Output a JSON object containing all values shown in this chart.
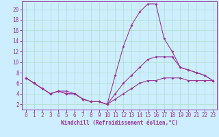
{
  "xlabel": "Windchill (Refroidissement éolien,°C)",
  "bg_color": "#cceeff",
  "grid_color": "#b0ddc8",
  "line_color": "#993399",
  "xlim": [
    -0.5,
    23.5
  ],
  "ylim": [
    1,
    21.5
  ],
  "xticks": [
    0,
    1,
    2,
    3,
    4,
    5,
    6,
    7,
    8,
    9,
    10,
    11,
    12,
    13,
    14,
    15,
    16,
    17,
    18,
    19,
    20,
    21,
    22,
    23
  ],
  "yticks": [
    2,
    4,
    6,
    8,
    10,
    12,
    14,
    16,
    18,
    20
  ],
  "line1_x": [
    0,
    1,
    2,
    3,
    4,
    5,
    6,
    7,
    8,
    9,
    10,
    11,
    12,
    13,
    14,
    15,
    16,
    17,
    18,
    19,
    20,
    21,
    22,
    23
  ],
  "line1_y": [
    7,
    6,
    5,
    4,
    4.5,
    4.5,
    4,
    3,
    2.5,
    2.5,
    2,
    7.5,
    13,
    17,
    19.5,
    21,
    21,
    14.5,
    12,
    9,
    8.5,
    8,
    7.5,
    6.5
  ],
  "line2_x": [
    0,
    1,
    2,
    3,
    4,
    5,
    6,
    7,
    8,
    9,
    10,
    11,
    12,
    13,
    14,
    15,
    16,
    17,
    18,
    19,
    20,
    21,
    22,
    23
  ],
  "line2_y": [
    7,
    6,
    5,
    4,
    4.5,
    4,
    4,
    3,
    2.5,
    2.5,
    2,
    4,
    6,
    7.5,
    9,
    10.5,
    11,
    11,
    11,
    9,
    8.5,
    8,
    7.5,
    6.5
  ],
  "line3_x": [
    0,
    1,
    2,
    3,
    4,
    5,
    6,
    7,
    8,
    9,
    10,
    11,
    12,
    13,
    14,
    15,
    16,
    17,
    18,
    19,
    20,
    21,
    22,
    23
  ],
  "line3_y": [
    7,
    6,
    5,
    4,
    4.5,
    4,
    4,
    3,
    2.5,
    2.5,
    2,
    3,
    4,
    5,
    6,
    6.5,
    6.5,
    7,
    7,
    7,
    6.5,
    6.5,
    6.5,
    6.5
  ],
  "tick_fontsize": 5.5,
  "xlabel_fontsize": 5.5
}
